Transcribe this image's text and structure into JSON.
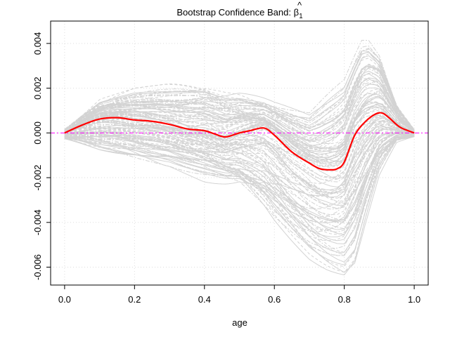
{
  "chart_data": {
    "type": "line",
    "title_prefix": "Bootstrap Confidence Band: ",
    "title_symbol": "β",
    "title_hat": "^",
    "title_subscript": "1",
    "xlabel": "age",
    "ylabel": "",
    "xlim": [
      0.0,
      1.0
    ],
    "ylim": [
      -0.0068,
      0.005
    ],
    "xticks": [
      0.0,
      0.2,
      0.4,
      0.6,
      0.8,
      1.0
    ],
    "xtick_labels": [
      "0.0",
      "0.2",
      "0.4",
      "0.6",
      "0.8",
      "1.0"
    ],
    "yticks": [
      0.004,
      0.002,
      0.0,
      -0.002,
      -0.004,
      -0.006
    ],
    "ytick_labels": [
      "0.004",
      "0.002",
      "0.000",
      "-0.002",
      "-0.004",
      "-0.006"
    ],
    "grid": true,
    "bootstrap_replicates": 120,
    "colors": {
      "estimate": "#ff0000",
      "bootstrap": "#d3d3d3",
      "reference": "#ff00ff",
      "grid": "#dddddd"
    },
    "reference_line_y": 0.0,
    "estimate": {
      "x": [
        0.0,
        0.05,
        0.1,
        0.15,
        0.2,
        0.25,
        0.3,
        0.35,
        0.4,
        0.43,
        0.46,
        0.5,
        0.53,
        0.57,
        0.6,
        0.65,
        0.7,
        0.73,
        0.76,
        0.78,
        0.8,
        0.83,
        0.86,
        0.89,
        0.91,
        0.93,
        0.96,
        1.0
      ],
      "y": [
        0.0,
        0.00035,
        0.00062,
        0.00068,
        0.00058,
        0.00052,
        0.00038,
        0.00018,
        0.0001,
        -5e-05,
        -0.00018,
        0.0,
        0.0001,
        0.00022,
        -0.0001,
        -0.00085,
        -0.00135,
        -0.0016,
        -0.00165,
        -0.0016,
        -0.0013,
        -0.0001,
        0.0005,
        0.00085,
        0.00088,
        0.00065,
        0.00025,
        0.0
      ]
    },
    "band_upper": {
      "x": [
        0.0,
        0.1,
        0.2,
        0.3,
        0.4,
        0.5,
        0.6,
        0.7,
        0.8,
        0.85,
        0.87,
        0.9,
        0.95,
        1.0
      ],
      "y": [
        0.0002,
        0.0015,
        0.002,
        0.0022,
        0.0025,
        0.0022,
        0.0015,
        0.001,
        0.0025,
        0.0045,
        0.0046,
        0.004,
        0.0015,
        0.0002
      ]
    },
    "band_lower": {
      "x": [
        0.0,
        0.1,
        0.2,
        0.3,
        0.4,
        0.5,
        0.6,
        0.7,
        0.75,
        0.8,
        0.83,
        0.86,
        0.9,
        0.95,
        1.0
      ],
      "y": [
        -0.0003,
        -0.0008,
        -0.0011,
        -0.0015,
        -0.0022,
        -0.0028,
        -0.0045,
        -0.0058,
        -0.0062,
        -0.0065,
        -0.006,
        -0.0042,
        -0.002,
        -0.0005,
        -0.0002
      ]
    }
  }
}
